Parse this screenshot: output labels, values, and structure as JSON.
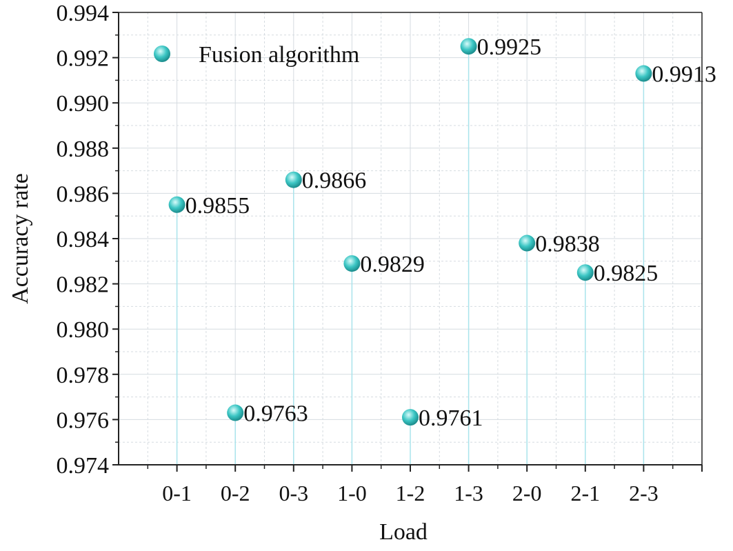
{
  "chart_data": {
    "type": "scatter",
    "xlabel": "Load",
    "ylabel": "Accuracy rate",
    "categories": [
      "0-1",
      "0-2",
      "0-3",
      "1-0",
      "1-2",
      "1-3",
      "2-0",
      "2-1",
      "2-3"
    ],
    "series": [
      {
        "name": "Fusion algorithm",
        "values": [
          0.9855,
          0.9763,
          0.9866,
          0.9829,
          0.9761,
          0.9925,
          0.9838,
          0.9825,
          0.9913
        ],
        "labels": [
          "0.9855",
          "0.9763",
          "0.9866",
          "0.9829",
          "0.9761",
          "0.9925",
          "0.9838",
          "0.9825",
          "0.9913"
        ]
      }
    ],
    "ylim": [
      0.974,
      0.994
    ],
    "yticks": [
      "0.974",
      "0.976",
      "0.978",
      "0.980",
      "0.982",
      "0.984",
      "0.986",
      "0.988",
      "0.990",
      "0.992",
      "0.994"
    ],
    "grid": true,
    "drop_lines": true,
    "legend_position": "top-left",
    "colors": {
      "marker": "#3cc6c4",
      "marker_highlight": "#d8fbfa",
      "marker_shadow": "#1b8c8c",
      "drop_line": "#a9e4ec",
      "grid": "#d5dbe0",
      "axis": "#222222"
    }
  }
}
